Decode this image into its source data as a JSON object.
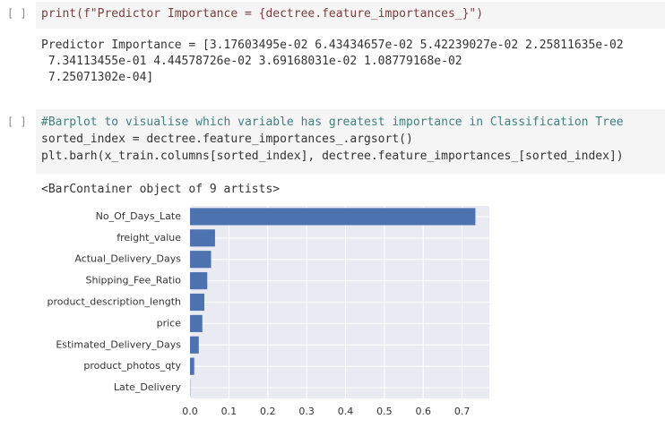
{
  "cells": [
    {
      "prompt": "[ ]",
      "code": [
        "print(f\"Predictor Importance = {dectree.feature_importances_}\")"
      ],
      "output": [
        "Predictor Importance = [3.17603495e-02 6.43434657e-02 5.42239027e-02 2.25811635e-02",
        " 7.34113455e-01 4.44578726e-02 3.69168031e-02 1.08779168e-02",
        " 7.25071302e-04]"
      ]
    },
    {
      "prompt": "[ ]",
      "code": [
        "#Barplot to visualise which variable has greatest importance in Classification Tree",
        "sorted_index = dectree.feature_importances_.argsort()",
        "plt.barh(x_train.columns[sorted_index], dectree.feature_importances_[sorted_index])"
      ],
      "output": [
        "<BarContainer object of 9 artists>"
      ]
    }
  ],
  "chart_data": {
    "type": "barh",
    "categories": [
      "No_Of_Days_Late",
      "freight_value",
      "Actual_Delivery_Days",
      "Shipping_Fee_Ratio",
      "product_description_length",
      "price",
      "Estimated_Delivery_Days",
      "product_photos_qty",
      "Late_Delivery"
    ],
    "values": [
      0.734113455,
      0.0643434657,
      0.0542239027,
      0.0444578726,
      0.0369168031,
      0.0317603495,
      0.0225811635,
      0.0108779168,
      0.000725071302
    ],
    "color": "#4c72b0",
    "xlim": [
      0,
      0.77
    ],
    "xticks": [
      {
        "value": 0,
        "label": "0.0"
      },
      0.1,
      0.2,
      0.3,
      0.4,
      0.5,
      0.6,
      0.7
    ],
    "grid": true
  }
}
